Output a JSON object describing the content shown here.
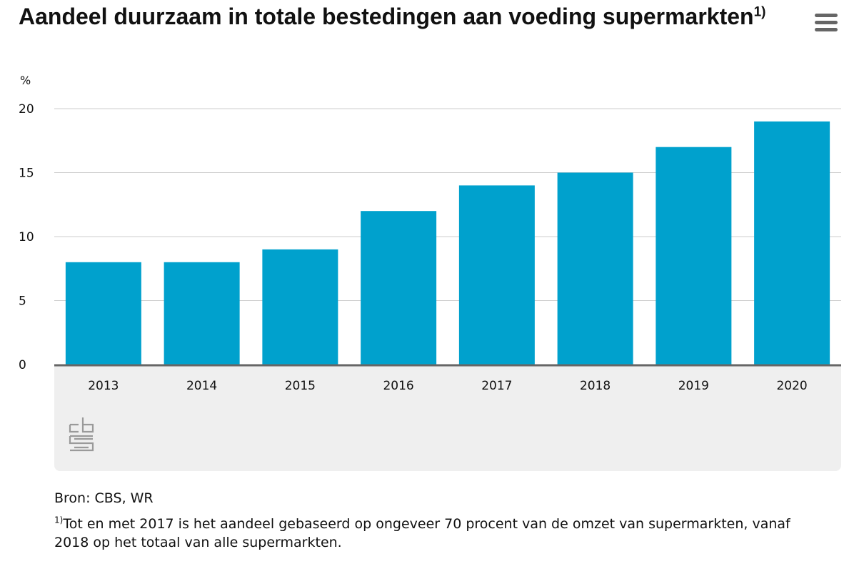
{
  "header": {
    "title": "Aandeel duurzaam in totale bestedingen aan voeding supermarkten",
    "title_note": "1)",
    "menu_icon": "hamburger-menu-icon"
  },
  "chart_data": {
    "type": "bar",
    "title": "Aandeel duurzaam in totale bestedingen aan voeding supermarkten",
    "ylabel": "%",
    "xlabel": "",
    "categories": [
      "2013",
      "2014",
      "2015",
      "2016",
      "2017",
      "2018",
      "2019",
      "2020"
    ],
    "values": [
      8,
      8,
      9,
      12,
      14,
      15,
      17,
      19
    ],
    "ylim": [
      0,
      20
    ],
    "yticks": [
      0,
      5,
      10,
      15,
      20
    ],
    "grid": true,
    "bar_color": "#00a1cd",
    "axis_color": "#666666",
    "grid_color": "#cccccc"
  },
  "logo": {
    "icon": "cbs-logo-icon"
  },
  "footer": {
    "source": "Bron: CBS, WR",
    "footnote_marker": "1)",
    "footnote": "Tot en met 2017 is het aandeel gebaseerd op ongeveer 70 procent van de omzet van supermarkten, vanaf 2018 op het totaal van alle supermarkten."
  }
}
